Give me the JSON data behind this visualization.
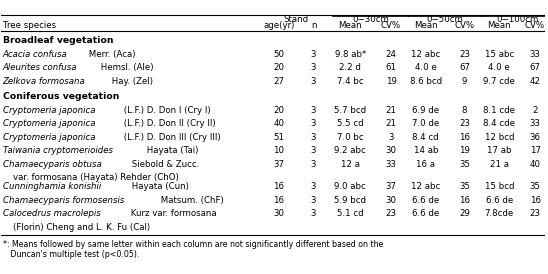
{
  "rows": [
    {
      "italic": "Acacia confusa",
      "normal": " Merr. (Aca)",
      "age": "50",
      "n": "3",
      "m30": "9.8 ab*",
      "cv30": "24",
      "m50": "12 abc",
      "cv50": "23",
      "m100": "15 abc",
      "cv100": "33",
      "twoline": false
    },
    {
      "italic": "Aleurites confusa",
      "normal": " Hemsl. (Ale)",
      "age": "20",
      "n": "3",
      "m30": "2.2 d",
      "cv30": "61",
      "m50": "4.0 e",
      "cv50": "67",
      "m100": "4.0 e",
      "cv100": "67",
      "twoline": false
    },
    {
      "italic": "Zelkova formosana",
      "normal": " Hay. (Zel)",
      "age": "27",
      "n": "3",
      "m30": "7.4 bc",
      "cv30": "19",
      "m50": "8.6 bcd",
      "cv50": "9",
      "m100": "9.7 cde",
      "cv100": "42",
      "twoline": false
    },
    {
      "italic": "Cryptomeria japonica",
      "normal": " (L.F.) D. Don I (Cry I)",
      "age": "20",
      "n": "3",
      "m30": "5.7 bcd",
      "cv30": "21",
      "m50": "6.9 de",
      "cv50": "8",
      "m100": "8.1 cde",
      "cv100": "2",
      "twoline": false
    },
    {
      "italic": "Cryptomeria japonica",
      "normal": " (L.F.) D. Don II (Cry II)",
      "age": "40",
      "n": "3",
      "m30": "5.5 cd",
      "cv30": "21",
      "m50": "7.0 de",
      "cv50": "23",
      "m100": "8.4 cde",
      "cv100": "33",
      "twoline": false
    },
    {
      "italic": "Cryptomeria japonica",
      "normal": " (L.F.) D. Don III (Cry III)",
      "age": "51",
      "n": "3",
      "m30": "7.0 bc",
      "cv30": "3",
      "m50": "8.4 cd",
      "cv50": "16",
      "m100": "12 bcd",
      "cv100": "36",
      "twoline": false
    },
    {
      "italic": "Taiwania cryptomerioides",
      "normal": " Hayata (Tai)",
      "age": "10",
      "n": "3",
      "m30": "9.2 abc",
      "cv30": "30",
      "m50": "14 ab",
      "cv50": "19",
      "m100": "17 ab",
      "cv100": "17",
      "twoline": false
    },
    {
      "italic": "Chamaecyparis obtusa",
      "normal": " Siebold & Zucc.",
      "normal2": "    var. formosana (Hayata) Rehder (ChO)",
      "age": "37",
      "n": "3",
      "m30": "12 a",
      "cv30": "33",
      "m50": "16 a",
      "cv50": "35",
      "m100": "21 a",
      "cv100": "40",
      "twoline": true
    },
    {
      "italic": "Cunninghamia konishii",
      "normal": " Hayata (Cun)",
      "age": "16",
      "n": "3",
      "m30": "9.0 abc",
      "cv30": "37",
      "m50": "12 abc",
      "cv50": "35",
      "m100": "15 bcd",
      "cv100": "35",
      "twoline": false
    },
    {
      "italic": "Chamaecyparis formosensis",
      "normal": " Matsum. (ChF)",
      "age": "16",
      "n": "3",
      "m30": "5.9 bcd",
      "cv30": "30",
      "m50": "6.6 de",
      "cv50": "16",
      "m100": "6.6 de",
      "cv100": "16",
      "twoline": false
    },
    {
      "italic": "Calocedrus macrolepis",
      "normal": " Kurz var. formosana",
      "normal2": "    (Florin) Cheng and L. K. Fu (Cal)",
      "age": "30",
      "n": "3",
      "m30": "5.1 cd",
      "cv30": "23",
      "m50": "6.6 de",
      "cv50": "29",
      "m100": "7.8cde",
      "cv100": "23",
      "twoline": true
    }
  ],
  "section_labels": [
    {
      "after_row": -1,
      "text": "Broadleaf vegetation"
    },
    {
      "after_row": 2,
      "text": "Coniferous vegetation"
    }
  ],
  "bg_color": "#ffffff",
  "text_color": "#000000",
  "fontsize": 6.2,
  "footnote1": "*: Means followed by same letter within each column are not significantly different based on the",
  "footnote2": "   Duncan's multiple test (p<0.05)."
}
